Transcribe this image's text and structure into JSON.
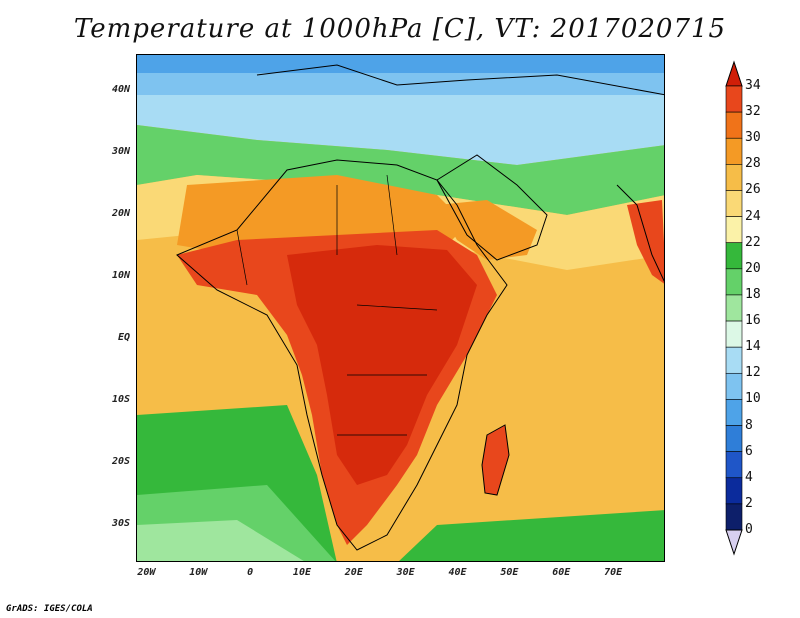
{
  "title": "Temperature at 1000hPa [C], VT: 2017020715",
  "footer": "GrADS: IGES/COLA",
  "map": {
    "lat_range": [
      -36,
      46
    ],
    "lon_range": [
      -22,
      80
    ],
    "lat_ticks": [
      "40N",
      "30N",
      "20N",
      "10N",
      "EQ",
      "10S",
      "20S",
      "30S"
    ],
    "lat_values": [
      40,
      30,
      20,
      10,
      0,
      -10,
      -20,
      -30
    ],
    "lon_ticks": [
      "20W",
      "10W",
      "0",
      "10E",
      "20E",
      "30E",
      "40E",
      "50E",
      "60E",
      "70E"
    ],
    "lon_values": [
      -20,
      -10,
      0,
      10,
      20,
      30,
      40,
      50,
      60,
      70
    ]
  },
  "colorbar": {
    "labels": [
      "34",
      "32",
      "30",
      "28",
      "26",
      "24",
      "22",
      "20",
      "18",
      "16",
      "14",
      "12",
      "10",
      "8",
      "6",
      "4",
      "2",
      "0"
    ],
    "colors": [
      "#d62a0c",
      "#e8471c",
      "#f07319",
      "#f49a25",
      "#f6bd48",
      "#fad976",
      "#fbf2a8",
      "#35b83b",
      "#64d169",
      "#9fe69e",
      "#dcf8e6",
      "#a8dcf4",
      "#7ec3f0",
      "#4ea3e8",
      "#2f7ed8",
      "#1f56c8",
      "#0b2b9c",
      "#0d1f6a"
    ],
    "over_color": "#d01e08",
    "under_color": "#d8d0f0"
  }
}
